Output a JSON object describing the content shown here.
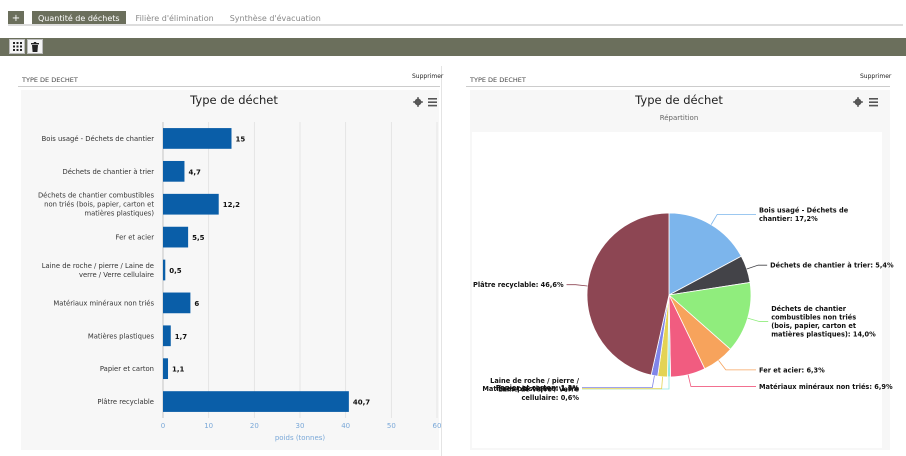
{
  "tabs": {
    "add_label": "+",
    "items": [
      {
        "label": "Quantité de déchets",
        "active": true
      },
      {
        "label": "Filière d'élimination",
        "active": false
      },
      {
        "label": "Synthèse d'évacuation",
        "active": false
      }
    ]
  },
  "toolbar": {
    "grid_icon": "grid-icon",
    "trash_icon": "trash-icon"
  },
  "panels": [
    {
      "title": "TYPE DE DECHET",
      "delete_label": "Supprimer"
    },
    {
      "title": "TYPE DE DECHET",
      "delete_label": "Supprimer"
    }
  ],
  "chart_data": [
    {
      "type": "bar",
      "orientation": "horizontal",
      "title": "Type de déchet",
      "xlabel": "poids (tonnes)",
      "xlim": [
        0,
        60
      ],
      "xticks": [
        "0",
        "10",
        "20",
        "30",
        "40",
        "50",
        "60"
      ],
      "bar_color": "#0a5ea8",
      "categories": [
        "Bois usagé - Déchets de chantier",
        "Déchets de chantier à trier",
        "Déchets de chantier combustibles non triés (bois, papier, carton et matières plastiques)",
        "Fer et acier",
        "Laine de roche / pierre / Laine de verre / Verre cellulaire",
        "Matériaux minéraux non triés",
        "Matières plastiques",
        "Papier et carton",
        "Plâtre recyclable"
      ],
      "category_lines": [
        [
          "Bois usagé - Déchets de chantier"
        ],
        [
          "Déchets de chantier à trier"
        ],
        [
          "Déchets de chantier combustibles",
          "non triés (bois, papier, carton et",
          "matières plastiques)"
        ],
        [
          "Fer et acier"
        ],
        [
          "Laine de roche / pierre / Laine de",
          "verre / Verre cellulaire"
        ],
        [
          "Matériaux minéraux non triés"
        ],
        [
          "Matières plastiques"
        ],
        [
          "Papier et carton"
        ],
        [
          "Plâtre recyclable"
        ]
      ],
      "values": [
        15,
        4.7,
        12.2,
        5.5,
        0.5,
        6,
        1.7,
        1.1,
        40.7
      ],
      "value_labels": [
        "15",
        "4,7",
        "12,2",
        "5,5",
        "0,5",
        "6",
        "1,7",
        "1,1",
        "40,7"
      ],
      "grid": true
    },
    {
      "type": "pie",
      "title": "Type de déchet",
      "subtitle": "Répartition",
      "slices": [
        {
          "name": "Bois usagé - Déchets de chantier",
          "value": 17.2,
          "color": "#7cb5ec",
          "label_lines": [
            "Bois usagé - Déchets de",
            "chantier: 17,2%"
          ]
        },
        {
          "name": "Déchets de chantier à trier",
          "value": 5.4,
          "color": "#434348",
          "label_lines": [
            "Déchets de chantier à trier: 5,4%"
          ]
        },
        {
          "name": "Déchets de chantier combustibles non triés (bois, papier, carton et matières plastiques)",
          "value": 14.0,
          "color": "#90ed7d",
          "label_lines": [
            "Déchets de chantier",
            "combustibles non triés",
            "(bois, papier, carton et",
            "matières plastiques): 14,0%"
          ]
        },
        {
          "name": "Fer et acier",
          "value": 6.3,
          "color": "#f7a35c",
          "label_lines": [
            "Fer et acier: 6,3%"
          ]
        },
        {
          "name": "Matériaux minéraux non triés",
          "value": 6.9,
          "color": "#f15c80",
          "label_lines": [
            "Matériaux minéraux non triés: 6,9%"
          ]
        },
        {
          "name": "Laine de roche / pierre / Laine de verre / Verre cellulaire",
          "value": 0.6,
          "color": "#91e8e1",
          "label_lines": [
            "Laine de roche / pierre /",
            "Laine de verre / Verre",
            "cellulaire: 0,6%"
          ]
        },
        {
          "name": "Matières plastiques",
          "value": 1.9,
          "color": "#e4d354",
          "label_lines": [
            "Matières plastiques: 1,9%"
          ]
        },
        {
          "name": "Papier et carton",
          "value": 1.3,
          "color": "#8085e9",
          "label_lines": [
            "Papier et carton: 1,3%"
          ]
        },
        {
          "name": "Plâtre recyclable",
          "value": 46.6,
          "color": "#8d4653",
          "label_lines": [
            "Plâtre recyclable: 46,6%"
          ]
        }
      ]
    }
  ]
}
